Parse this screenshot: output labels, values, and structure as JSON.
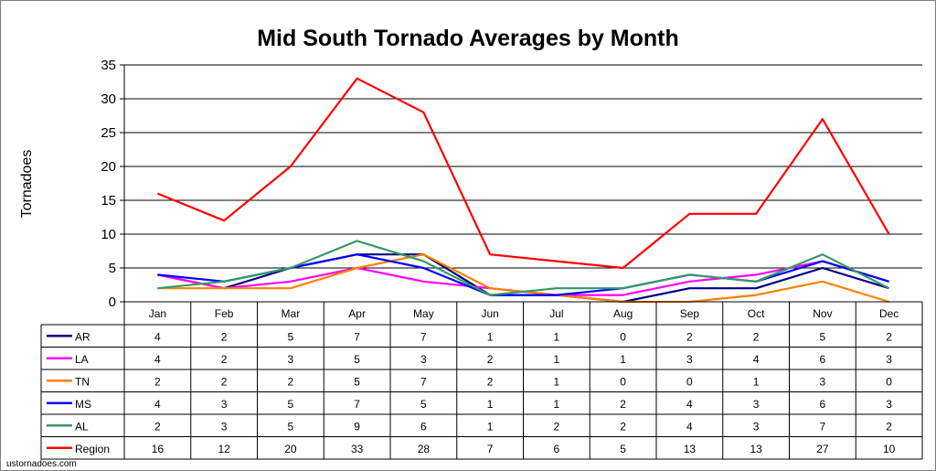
{
  "chart_data": {
    "type": "line",
    "title": "Mid South Tornado Averages by Month",
    "ylabel": "Tornadoes",
    "xlabel": "",
    "ylim": [
      0,
      35
    ],
    "yticks": [
      0,
      5,
      10,
      15,
      20,
      25,
      30,
      35
    ],
    "grid": true,
    "legend_placement": "data-table-left",
    "categories": [
      "Jan",
      "Feb",
      "Mar",
      "Apr",
      "May",
      "Jun",
      "Jul",
      "Aug",
      "Sep",
      "Oct",
      "Nov",
      "Dec"
    ],
    "series": [
      {
        "name": "AR",
        "color": "#000080",
        "values": [
          4,
          2,
          5,
          7,
          7,
          1,
          1,
          0,
          2,
          2,
          5,
          2
        ]
      },
      {
        "name": "LA",
        "color": "#ff00ff",
        "values": [
          4,
          2,
          3,
          5,
          3,
          2,
          1,
          1,
          3,
          4,
          6,
          3
        ]
      },
      {
        "name": "TN",
        "color": "#ff8000",
        "values": [
          2,
          2,
          2,
          5,
          7,
          2,
          1,
          0,
          0,
          1,
          3,
          0
        ]
      },
      {
        "name": "MS",
        "color": "#0000ff",
        "values": [
          4,
          3,
          5,
          7,
          5,
          1,
          1,
          2,
          4,
          3,
          6,
          3
        ]
      },
      {
        "name": "AL",
        "color": "#339966",
        "values": [
          2,
          3,
          5,
          9,
          6,
          1,
          2,
          2,
          4,
          3,
          7,
          2
        ]
      },
      {
        "name": "Region",
        "color": "#ff0000",
        "values": [
          16,
          12,
          20,
          33,
          28,
          7,
          6,
          5,
          13,
          13,
          27,
          10
        ]
      }
    ]
  },
  "footer": {
    "source": "ustornadoes.com"
  }
}
